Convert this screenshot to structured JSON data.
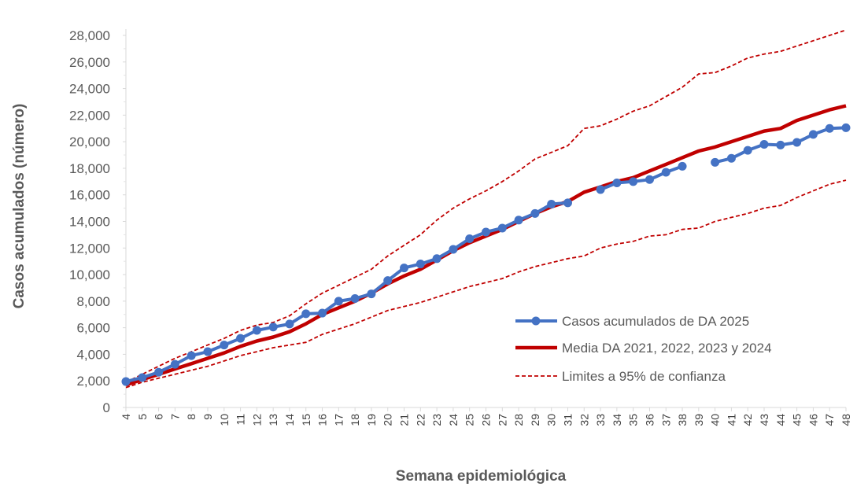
{
  "chart_data": {
    "type": "line",
    "title": "",
    "xlabel": "Semana epidemiológica",
    "ylabel": "Casos acumulados  (número)",
    "ylim": [
      0,
      28000
    ],
    "yticks": [
      0,
      2000,
      4000,
      6000,
      8000,
      10000,
      12000,
      14000,
      16000,
      18000,
      20000,
      22000,
      24000,
      26000,
      28000
    ],
    "ytick_labels": [
      "0",
      "2,000",
      "4,000",
      "6,000",
      "8,000",
      "10,000",
      "12,000",
      "14,000",
      "16,000",
      "18,000",
      "20,000",
      "22,000",
      "24,000",
      "26,000",
      "28,000"
    ],
    "x": [
      4,
      5,
      6,
      7,
      8,
      9,
      10,
      11,
      12,
      13,
      14,
      15,
      16,
      17,
      18,
      19,
      20,
      21,
      22,
      23,
      24,
      25,
      26,
      27,
      28,
      29,
      30,
      31,
      32,
      33,
      34,
      35,
      36,
      37,
      38,
      39,
      40,
      41,
      42,
      43,
      44,
      45,
      46,
      47,
      48
    ],
    "grid": false,
    "legend_position": "right",
    "series": [
      {
        "name": "Casos acumulados de DA 2025",
        "color": "#4472C4",
        "style": "line-markers",
        "values": [
          1950,
          2250,
          2650,
          3250,
          3900,
          4200,
          4700,
          5200,
          5800,
          6050,
          6280,
          7050,
          7100,
          8000,
          8200,
          8550,
          9550,
          10500,
          10800,
          11200,
          11900,
          12700,
          13200,
          13500,
          14100,
          14600,
          15300,
          15400,
          null,
          16400,
          16900,
          17000,
          17150,
          17700,
          18150,
          null,
          18450,
          18750,
          19350,
          19800,
          19750,
          19950,
          20550,
          21000,
          21050
        ]
      },
      {
        "name": "Media DA 2021, 2022, 2023 y 2024",
        "color": "#C00000",
        "style": "line",
        "values": [
          1700,
          2100,
          2500,
          2900,
          3300,
          3700,
          4100,
          4600,
          5000,
          5300,
          5700,
          6300,
          7000,
          7500,
          8000,
          8600,
          9300,
          9900,
          10400,
          11100,
          11800,
          12400,
          12900,
          13400,
          14000,
          14600,
          15100,
          15500,
          16200,
          16600,
          17000,
          17300,
          17800,
          18300,
          18800,
          19300,
          19600,
          20000,
          20400,
          20800,
          21000,
          21600,
          22000,
          22400,
          22700
        ]
      },
      {
        "name": "Limites a 95% de confianza",
        "color": "#C00000",
        "style": "dashed",
        "values": [
          1900,
          2500,
          3100,
          3700,
          4200,
          4700,
          5200,
          5800,
          6200,
          6400,
          6900,
          7800,
          8600,
          9200,
          9800,
          10400,
          11400,
          12200,
          13000,
          14100,
          15000,
          15700,
          16300,
          17000,
          17800,
          18700,
          19200,
          19700,
          21000,
          21200,
          21700,
          22300,
          22700,
          23400,
          24100,
          25100,
          25200,
          25700,
          26300,
          26600,
          26800,
          27200,
          27600,
          28000,
          28400
        ]
      },
      {
        "color": "#C00000",
        "style": "dashed",
        "values": [
          1500,
          1900,
          2200,
          2500,
          2800,
          3100,
          3500,
          3900,
          4200,
          4500,
          4700,
          4900,
          5500,
          5900,
          6300,
          6800,
          7300,
          7600,
          7900,
          8300,
          8700,
          9100,
          9400,
          9700,
          10200,
          10600,
          10900,
          11200,
          11400,
          12000,
          12300,
          12500,
          12900,
          13000,
          13400,
          13500,
          14000,
          14300,
          14600,
          15000,
          15200,
          15800,
          16300,
          16800,
          17100
        ]
      }
    ]
  }
}
